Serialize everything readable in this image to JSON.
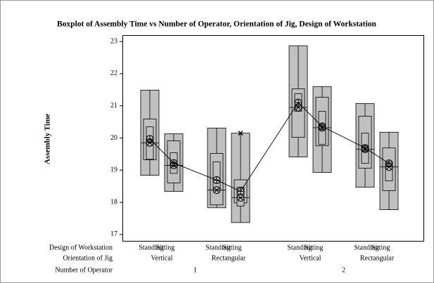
{
  "chart_data": {
    "type": "boxplot",
    "title": "Boxplot of Assembly Time vs Number of Operator, Orientation of Jig, Design of Workstation",
    "y_label": "Assembly Time",
    "ylim": [
      16.8,
      23.2
    ],
    "yticks": [
      17,
      18,
      19,
      20,
      21,
      22,
      23
    ],
    "color": "#c0c0c0",
    "factors": [
      {
        "name": "Design of Workstation",
        "levels": [
          "Standing",
          "Sitting",
          "Standing",
          "Sitting",
          "Standing",
          "Sitting",
          "Standing",
          "Sitting"
        ]
      },
      {
        "name": "Orientation of Jig",
        "levels": [
          "Vertical",
          "Rectangular",
          "Vertical",
          "Rectangular"
        ]
      },
      {
        "name": "Number of Operator",
        "levels": [
          "1",
          "2"
        ]
      }
    ],
    "boxes": [
      {
        "min": 18.84,
        "max": 21.49,
        "q1": 19.32,
        "q3": 20.59,
        "ci_low": 19.34,
        "ci_high": 20.35,
        "median": 19.85,
        "mean": 19.97
      },
      {
        "min": 18.34,
        "max": 20.13,
        "q1": 18.6,
        "q3": 19.91,
        "ci_low": 18.9,
        "ci_high": 19.54,
        "median": 19.15,
        "mean": 19.22
      },
      {
        "min": 17.83,
        "max": 20.31,
        "q1": 17.92,
        "q3": 19.52,
        "ci_low": 18.38,
        "ci_high": 19.26,
        "median": 18.38,
        "mean": 18.69
      },
      {
        "min": 17.37,
        "max": 20.15,
        "q1": 17.98,
        "q3": 18.7,
        "ci_low": 17.88,
        "ci_high": 18.47,
        "median": 18.14,
        "mean": 18.34
      },
      {
        "min": 19.41,
        "max": 22.87,
        "q1": 20.02,
        "q3": 21.53,
        "ci_low": 20.83,
        "ci_high": 21.38,
        "median": 20.95,
        "mean": 21.1
      },
      {
        "min": 18.93,
        "max": 21.6,
        "q1": 19.76,
        "q3": 21.27,
        "ci_low": 19.8,
        "ci_high": 20.83,
        "median": 20.32,
        "mean": 20.36
      },
      {
        "min": 18.47,
        "max": 21.07,
        "q1": 19.06,
        "q3": 20.68,
        "ci_low": 19.21,
        "ci_high": 20.15,
        "median": 19.65,
        "mean": 19.69
      },
      {
        "min": 17.77,
        "max": 20.18,
        "q1": 18.36,
        "q3": 19.69,
        "ci_low": 18.67,
        "ci_high": 19.26,
        "median": 19.1,
        "mean": 19.21
      }
    ],
    "outliers": [
      [],
      [],
      [],
      [
        20.15
      ],
      [],
      [],
      [],
      []
    ]
  }
}
